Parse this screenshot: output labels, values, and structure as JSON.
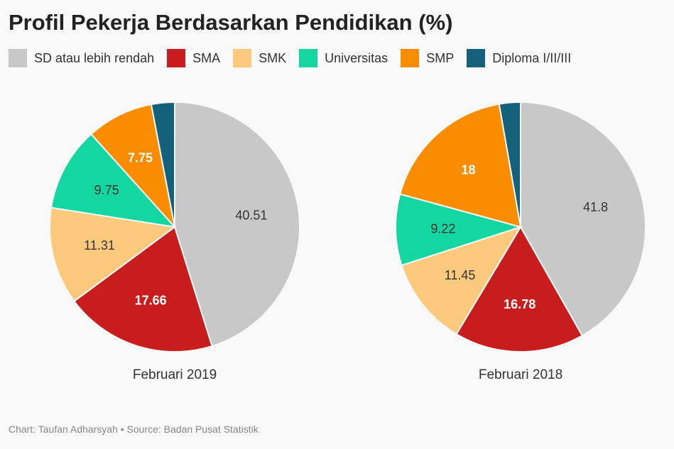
{
  "chart_data": {
    "type": "pie",
    "title": "Profil Pekerja Berdasarkan Pendidikan (%)",
    "legend": [
      {
        "name": "SD atau lebih rendah",
        "color": "#c8c8c8"
      },
      {
        "name": "SMA",
        "color": "#c71e1d"
      },
      {
        "name": "SMK",
        "color": "#fdca7d"
      },
      {
        "name": "Universitas",
        "color": "#14d6a0"
      },
      {
        "name": "SMP",
        "color": "#fa8c00"
      },
      {
        "name": "Diploma I/II/III",
        "color": "#15607a"
      }
    ],
    "pies": [
      {
        "label": "Februari 2019",
        "values": [
          40.51,
          17.66,
          11.31,
          9.75,
          7.75,
          2.7
        ],
        "labels": [
          "40.51",
          "17.66",
          "11.31",
          "9.75",
          "7.75",
          ""
        ]
      },
      {
        "label": "Februari 2018",
        "values": [
          41.8,
          16.78,
          11.45,
          9.22,
          18,
          2.75
        ],
        "labels": [
          "41.8",
          "16.78",
          "11.45",
          "9.22",
          "18",
          ""
        ]
      }
    ]
  },
  "footer": "Chart: Taufan Adharsyah • Source: Badan Pusat Statistik"
}
